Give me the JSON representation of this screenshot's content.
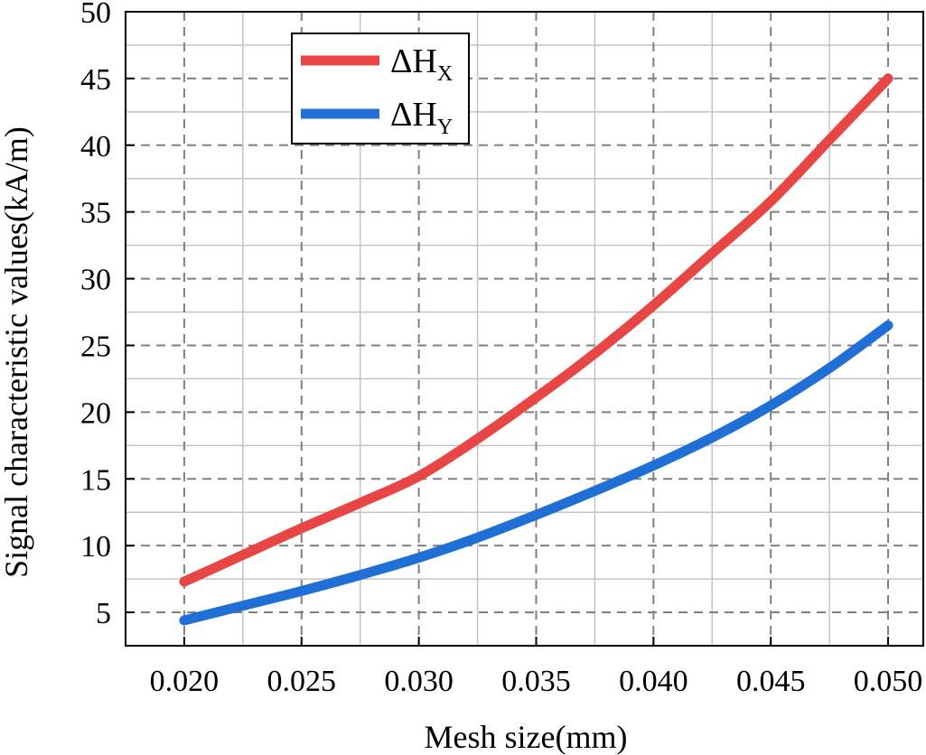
{
  "chart_data": {
    "type": "line",
    "title": "",
    "xlabel": "Mesh size(mm)",
    "ylabel": "Signal characteristic values(kA/m)",
    "xlim": [
      0.0175,
      0.0515
    ],
    "ylim": [
      2.5,
      50
    ],
    "x_ticks": [
      0.02,
      0.025,
      0.03,
      0.035,
      0.04,
      0.045,
      0.05
    ],
    "x_tick_labels": [
      "0.020",
      "0.025",
      "0.030",
      "0.035",
      "0.040",
      "0.045",
      "0.050"
    ],
    "y_ticks": [
      5,
      10,
      15,
      20,
      25,
      30,
      35,
      40,
      45,
      50
    ],
    "y_tick_labels": [
      "5",
      "10",
      "15",
      "20",
      "25",
      "30",
      "35",
      "40",
      "45",
      "50"
    ],
    "grid": true,
    "legend_position": "top-left",
    "series": [
      {
        "name": "ΔHX",
        "label_main": "ΔH",
        "label_sub": "X",
        "color": "#e84545",
        "x": [
          0.02,
          0.0225,
          0.025,
          0.0275,
          0.03,
          0.0325,
          0.035,
          0.0375,
          0.04,
          0.0425,
          0.045,
          0.0475,
          0.05
        ],
        "y": [
          7.3,
          9.3,
          11.3,
          13.2,
          15.2,
          18.0,
          21.1,
          24.4,
          28.0,
          31.9,
          35.8,
          40.4,
          45.0
        ]
      },
      {
        "name": "ΔHY",
        "label_main": "ΔH",
        "label_sub": "Y",
        "color": "#1f6fd6",
        "x": [
          0.02,
          0.0225,
          0.025,
          0.0275,
          0.03,
          0.0325,
          0.035,
          0.0375,
          0.04,
          0.0425,
          0.045,
          0.0475,
          0.05
        ],
        "y": [
          4.4,
          5.5,
          6.6,
          7.8,
          9.1,
          10.6,
          12.3,
          14.1,
          16.0,
          18.1,
          20.5,
          23.3,
          26.5
        ]
      }
    ]
  }
}
